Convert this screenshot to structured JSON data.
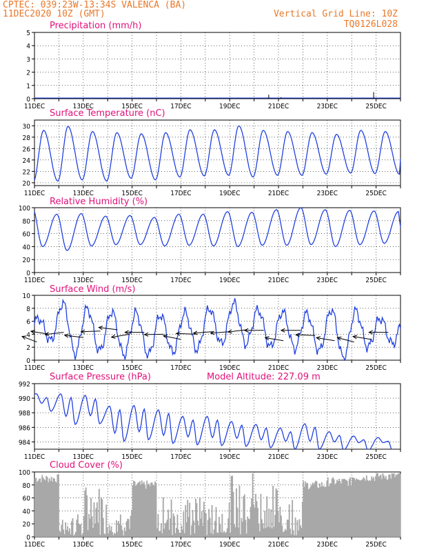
{
  "header": {
    "line1": "CPTEC:  039:23W-13:34S  VALENCA (BA)",
    "line2": "11DEC2020 10Z (GMT)",
    "grid_note": "Vertical Grid Line: 10Z",
    "code": "TQ0126L028"
  },
  "colors": {
    "header": "#e8782a",
    "title": "#e0107a",
    "line": "#2040e0",
    "cloud": "#a8a8a8",
    "arrow": "#000000"
  },
  "x_labels": [
    "11DEC",
    "13DEC",
    "15DEC",
    "17DEC",
    "19DEC",
    "21DEC",
    "23DEC",
    "25DEC"
  ],
  "model_altitude": "Model Altitude: 227.09 m",
  "chart_data": [
    {
      "id": "precip",
      "type": "bar",
      "title": "Precipitation (mm/h)",
      "ylim": [
        0,
        5
      ],
      "yticks": [
        0,
        1,
        2,
        3,
        4,
        5
      ],
      "x_range_days": [
        0,
        15
      ],
      "x": [
        9.6,
        10.1,
        13.9
      ],
      "values": [
        0.3,
        0.1,
        0.5
      ]
    },
    {
      "id": "temp",
      "type": "line",
      "title": "Surface Temperature (nC)",
      "ylim": [
        19.5,
        31
      ],
      "yticks": [
        20,
        22,
        24,
        26,
        28,
        30
      ],
      "x_range_days": [
        0,
        15
      ],
      "minima": [
        20.2,
        20.3,
        20.5,
        20.3,
        20.8,
        20.5,
        21.0,
        21.2,
        21.3,
        21.0,
        21.3,
        21.3,
        21.5,
        21.7,
        21.6,
        21.5
      ],
      "maxima": [
        29.2,
        29.9,
        29.0,
        28.8,
        28.6,
        28.8,
        29.3,
        29.3,
        30.0,
        29.2,
        29.0,
        28.8,
        28.5,
        29.2,
        29.0,
        28.6
      ],
      "min_hour": 9,
      "max_hour": 19,
      "end_value": 24.2
    },
    {
      "id": "rh",
      "type": "line",
      "title": "Relative Humidity (%)",
      "ylim": [
        0,
        100
      ],
      "yticks": [
        0,
        20,
        40,
        60,
        80,
        100
      ],
      "x_range_days": [
        0,
        15
      ],
      "maxima": [
        100,
        90,
        91,
        87,
        88,
        85,
        90,
        90,
        94,
        93,
        97,
        100,
        97,
        96,
        95,
        94
      ],
      "minima": [
        40,
        34,
        41,
        43,
        43,
        41,
        42,
        41,
        40,
        42,
        42,
        43,
        40,
        43,
        45,
        46
      ],
      "max_hour": 8,
      "min_hour": 18,
      "end_value": 70
    },
    {
      "id": "wind",
      "type": "line",
      "title": "Surface Wind (m/s)",
      "ylim": [
        0,
        10
      ],
      "yticks": [
        0,
        2,
        4,
        6,
        8,
        10
      ],
      "x_range_days": [
        0,
        15
      ],
      "speed_minima": [
        2.5,
        3.0,
        1.0,
        1.4,
        0.8,
        0.8,
        1.2,
        1.6,
        2.5,
        2.5,
        2.0,
        1.8,
        1.4,
        0.3,
        2.0,
        2.5
      ],
      "speed_maxima": [
        6.5,
        8.8,
        8.0,
        7.5,
        7.3,
        7.0,
        7.3,
        8.0,
        8.8,
        7.8,
        7.5,
        7.2,
        7.8,
        7.6,
        6.5,
        6.5
      ],
      "min_hour": 2,
      "max_hour": 14,
      "arrows": [
        {
          "day": 0.1,
          "speed": 2.8,
          "dir": 230
        },
        {
          "day": 0.6,
          "speed": 4.0,
          "dir": 250
        },
        {
          "day": 1.2,
          "speed": 4.3,
          "dir": 285
        },
        {
          "day": 2.0,
          "speed": 3.5,
          "dir": 255
        },
        {
          "day": 2.7,
          "speed": 4.5,
          "dir": 275
        },
        {
          "day": 3.4,
          "speed": 4.7,
          "dir": 255
        },
        {
          "day": 3.9,
          "speed": 4.0,
          "dir": 290
        },
        {
          "day": 4.5,
          "speed": 4.3,
          "dir": 270
        },
        {
          "day": 5.3,
          "speed": 4.0,
          "dir": 272
        },
        {
          "day": 6.0,
          "speed": 3.2,
          "dir": 245
        },
        {
          "day": 6.6,
          "speed": 4.0,
          "dir": 265
        },
        {
          "day": 7.3,
          "speed": 4.4,
          "dir": 280
        },
        {
          "day": 8.0,
          "speed": 4.4,
          "dir": 280
        },
        {
          "day": 8.7,
          "speed": 4.7,
          "dir": 285
        },
        {
          "day": 9.4,
          "speed": 4.6,
          "dir": 270
        },
        {
          "day": 10.2,
          "speed": 3.0,
          "dir": 250
        },
        {
          "day": 10.9,
          "speed": 4.6,
          "dir": 270
        },
        {
          "day": 11.5,
          "speed": 3.8,
          "dir": 265
        },
        {
          "day": 12.3,
          "speed": 3.0,
          "dir": 250
        },
        {
          "day": 13.1,
          "speed": 2.8,
          "dir": 240
        },
        {
          "day": 13.8,
          "speed": 3.2,
          "dir": 250
        },
        {
          "day": 14.5,
          "speed": 4.3,
          "dir": 270
        }
      ]
    },
    {
      "id": "pres",
      "type": "line",
      "title": "Surface Pressure (hPa)",
      "ylim": [
        983,
        992
      ],
      "yticks": [
        984,
        986,
        988,
        990,
        992
      ],
      "x_range_days": [
        0,
        15
      ],
      "maxima": [
        990.6,
        990.6,
        990.4,
        988.9,
        989.0,
        988.4,
        987.5,
        987.5,
        986.8,
        986.4,
        985.9,
        986.5,
        985.4,
        984.8,
        984.6
      ],
      "minima": [
        988.2,
        986.4,
        986.5,
        984.1,
        984.3,
        983.8,
        983.6,
        983.5,
        983.4,
        983.2,
        983.0,
        983.0,
        982.9,
        982.8,
        982.8
      ],
      "max_hour": 12,
      "min_hour": 2
    },
    {
      "id": "cloud",
      "type": "bar",
      "title": "Cloud Cover (%)",
      "ylim": [
        0,
        100
      ],
      "yticks": [
        0,
        20,
        40,
        60,
        80,
        100
      ],
      "x_range_days": [
        0,
        15
      ],
      "daily_mean": [
        90,
        20,
        45,
        25,
        80,
        35,
        35,
        30,
        60,
        45,
        40,
        80,
        85,
        92,
        94
      ]
    }
  ]
}
